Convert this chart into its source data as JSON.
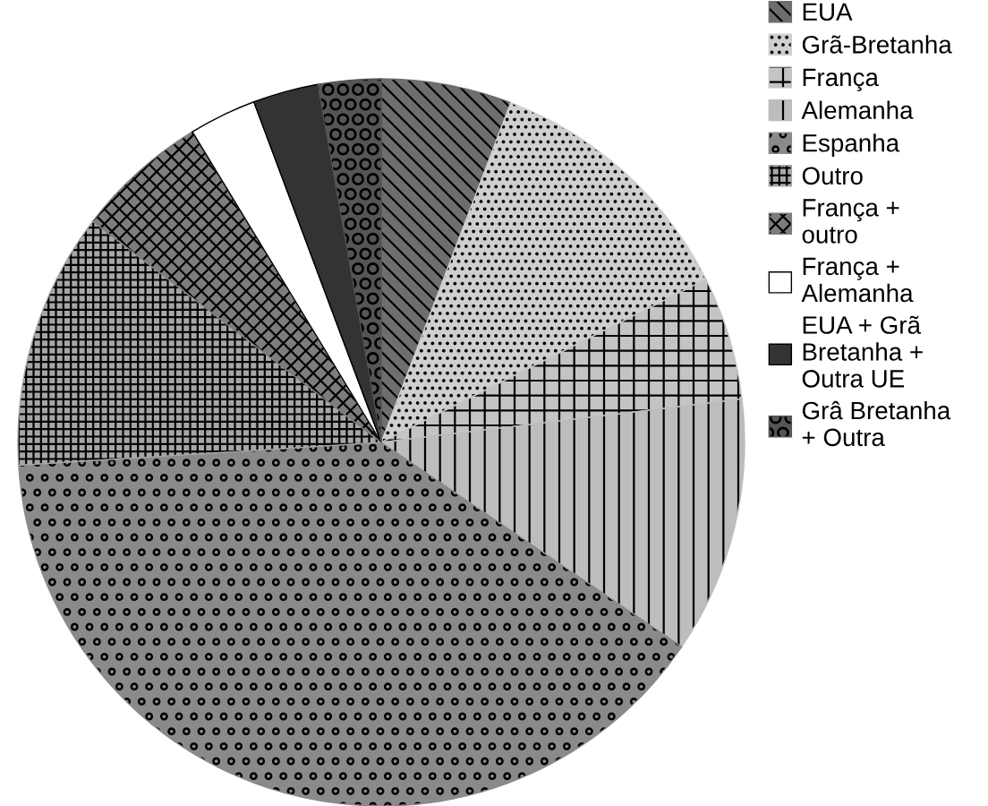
{
  "chart_data": {
    "type": "pie",
    "categories": [
      "EUA",
      "Grã-Bretanha",
      "França",
      "Alemanha",
      "Espanha",
      "Outro",
      "França +\noutro",
      "França +\nAlemanha",
      "EUA + Grã\nBretanha +\nOutra UE",
      "Grâ Bretanha\n+ Outra"
    ],
    "values": [
      5.8,
      11.8,
      5.5,
      11.4,
      39.5,
      11.4,
      5.9,
      3.0,
      2.9,
      2.8
    ],
    "colors": [
      "#6e6e6e",
      "#cfcfcf",
      "#c4c4c4",
      "#bdbdbd",
      "#8a8a8a",
      "#a6a6a6",
      "#7d7d7d",
      "#ffffff",
      "#333333",
      "#555555"
    ],
    "legend": "right"
  }
}
